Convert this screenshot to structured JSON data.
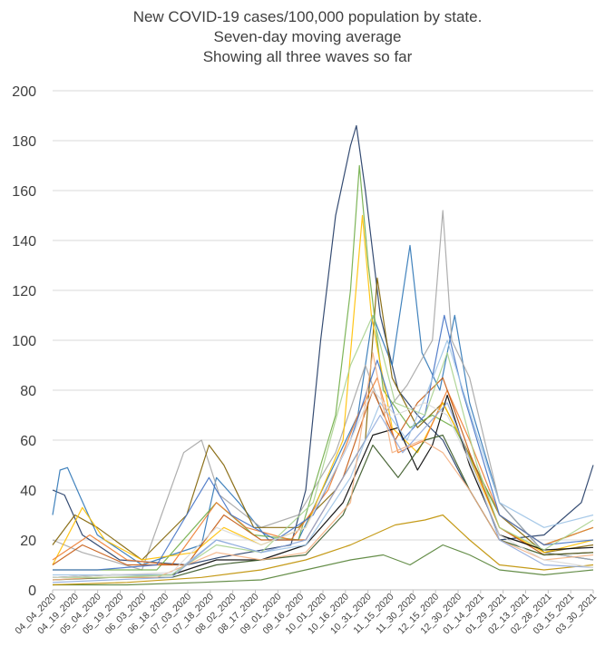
{
  "chart_data": {
    "type": "line",
    "title": [
      "New COVID-19 cases/100,000 population by state.",
      "Seven-day moving average",
      "Showing all three waves so far"
    ],
    "ylim": [
      0,
      200
    ],
    "yticks": [
      "0",
      "20",
      "40",
      "60",
      "80",
      "100",
      "120",
      "140",
      "160",
      "180",
      "200"
    ],
    "x_range_days": [
      0,
      363
    ],
    "xticks": [
      "04_04_2020",
      "04_19_2020",
      "05_04_2020",
      "05_19_2020",
      "06_03_2020",
      "06_18_2020",
      "07_03_2020",
      "07_18_2020",
      "08_02_2020",
      "08_17_2020",
      "09_01_2020",
      "09_16_2020",
      "10_01_2020",
      "10_16_2020",
      "10_31_2020",
      "11_15_2020",
      "11_30_2020",
      "12_15_2020",
      "12_30_2020",
      "01_14_2021",
      "01_29_2021",
      "02_13_2021",
      "02_28_2021",
      "03_15_2021",
      "03_30_2021"
    ],
    "grid": true,
    "legend": "none",
    "series": [
      {
        "color": "#1f3864",
        "points": [
          [
            0,
            40
          ],
          [
            8,
            38
          ],
          [
            20,
            22
          ],
          [
            45,
            12
          ],
          [
            90,
            10
          ],
          [
            112,
            13
          ],
          [
            160,
            18
          ],
          [
            170,
            40
          ],
          [
            180,
            100
          ],
          [
            190,
            150
          ],
          [
            200,
            178
          ],
          [
            204,
            186
          ],
          [
            210,
            160
          ],
          [
            220,
            110
          ],
          [
            232,
            80
          ],
          [
            245,
            70
          ],
          [
            262,
            60
          ],
          [
            275,
            45
          ],
          [
            300,
            20
          ],
          [
            330,
            22
          ],
          [
            355,
            35
          ],
          [
            363,
            50
          ]
        ]
      },
      {
        "color": "#2e75b6",
        "points": [
          [
            0,
            30
          ],
          [
            5,
            48
          ],
          [
            10,
            49
          ],
          [
            18,
            38
          ],
          [
            30,
            22
          ],
          [
            60,
            10
          ],
          [
            100,
            18
          ],
          [
            110,
            45
          ],
          [
            125,
            35
          ],
          [
            145,
            20
          ],
          [
            165,
            20
          ],
          [
            185,
            45
          ],
          [
            205,
            70
          ],
          [
            215,
            110
          ],
          [
            228,
            90
          ],
          [
            240,
            138
          ],
          [
            248,
            95
          ],
          [
            260,
            80
          ],
          [
            270,
            110
          ],
          [
            280,
            75
          ],
          [
            300,
            35
          ],
          [
            330,
            15
          ],
          [
            363,
            12
          ]
        ]
      },
      {
        "color": "#a5a5a5",
        "points": [
          [
            0,
            20
          ],
          [
            20,
            15
          ],
          [
            60,
            8
          ],
          [
            88,
            55
          ],
          [
            100,
            60
          ],
          [
            112,
            38
          ],
          [
            140,
            25
          ],
          [
            165,
            30
          ],
          [
            190,
            55
          ],
          [
            210,
            90
          ],
          [
            222,
            70
          ],
          [
            238,
            82
          ],
          [
            255,
            100
          ],
          [
            262,
            152
          ],
          [
            268,
            100
          ],
          [
            280,
            85
          ],
          [
            300,
            35
          ],
          [
            330,
            15
          ],
          [
            363,
            12
          ]
        ]
      },
      {
        "color": "#7f6000",
        "points": [
          [
            0,
            18
          ],
          [
            15,
            30
          ],
          [
            30,
            25
          ],
          [
            60,
            12
          ],
          [
            90,
            30
          ],
          [
            105,
            58
          ],
          [
            115,
            50
          ],
          [
            135,
            25
          ],
          [
            165,
            25
          ],
          [
            190,
            40
          ],
          [
            210,
            60
          ],
          [
            218,
            125
          ],
          [
            228,
            85
          ],
          [
            245,
            65
          ],
          [
            262,
            75
          ],
          [
            275,
            60
          ],
          [
            300,
            30
          ],
          [
            330,
            15
          ],
          [
            363,
            18
          ]
        ]
      },
      {
        "color": "#70ad47",
        "points": [
          [
            0,
            8
          ],
          [
            30,
            8
          ],
          [
            70,
            8
          ],
          [
            110,
            35
          ],
          [
            135,
            22
          ],
          [
            165,
            20
          ],
          [
            190,
            70
          ],
          [
            200,
            120
          ],
          [
            206,
            170
          ],
          [
            212,
            130
          ],
          [
            222,
            80
          ],
          [
            240,
            65
          ],
          [
            255,
            70
          ],
          [
            270,
            65
          ],
          [
            300,
            30
          ],
          [
            330,
            18
          ],
          [
            363,
            25
          ]
        ]
      },
      {
        "color": "#ffc000",
        "points": [
          [
            0,
            10
          ],
          [
            20,
            33
          ],
          [
            35,
            20
          ],
          [
            60,
            12
          ],
          [
            95,
            15
          ],
          [
            115,
            25
          ],
          [
            140,
            18
          ],
          [
            170,
            25
          ],
          [
            195,
            60
          ],
          [
            208,
            150
          ],
          [
            214,
            110
          ],
          [
            228,
            65
          ],
          [
            245,
            55
          ],
          [
            262,
            75
          ],
          [
            275,
            60
          ],
          [
            300,
            25
          ],
          [
            330,
            15
          ],
          [
            363,
            20
          ]
        ]
      },
      {
        "color": "#ed7d31",
        "points": [
          [
            0,
            12
          ],
          [
            25,
            22
          ],
          [
            50,
            12
          ],
          [
            80,
            10
          ],
          [
            110,
            35
          ],
          [
            130,
            25
          ],
          [
            160,
            20
          ],
          [
            185,
            40
          ],
          [
            205,
            70
          ],
          [
            218,
            85
          ],
          [
            232,
            55
          ],
          [
            250,
            60
          ],
          [
            265,
            80
          ],
          [
            280,
            60
          ],
          [
            300,
            30
          ],
          [
            330,
            18
          ],
          [
            363,
            25
          ]
        ]
      },
      {
        "color": "#c55a11",
        "points": [
          [
            0,
            10
          ],
          [
            20,
            18
          ],
          [
            50,
            10
          ],
          [
            90,
            10
          ],
          [
            115,
            30
          ],
          [
            140,
            20
          ],
          [
            170,
            20
          ],
          [
            195,
            45
          ],
          [
            215,
            80
          ],
          [
            230,
            60
          ],
          [
            245,
            75
          ],
          [
            262,
            85
          ],
          [
            280,
            55
          ],
          [
            300,
            25
          ],
          [
            330,
            14
          ],
          [
            363,
            15
          ]
        ]
      },
      {
        "color": "#4472c4",
        "points": [
          [
            0,
            8
          ],
          [
            30,
            8
          ],
          [
            70,
            10
          ],
          [
            105,
            45
          ],
          [
            120,
            30
          ],
          [
            150,
            20
          ],
          [
            175,
            30
          ],
          [
            200,
            60
          ],
          [
            218,
            92
          ],
          [
            235,
            60
          ],
          [
            250,
            70
          ],
          [
            263,
            110
          ],
          [
            275,
            80
          ],
          [
            300,
            30
          ],
          [
            330,
            18
          ],
          [
            363,
            20
          ]
        ]
      },
      {
        "color": "#000000",
        "points": [
          [
            0,
            5
          ],
          [
            40,
            6
          ],
          [
            80,
            6
          ],
          [
            110,
            12
          ],
          [
            140,
            12
          ],
          [
            170,
            18
          ],
          [
            195,
            35
          ],
          [
            215,
            62
          ],
          [
            232,
            65
          ],
          [
            245,
            48
          ],
          [
            255,
            58
          ],
          [
            265,
            78
          ],
          [
            280,
            50
          ],
          [
            300,
            22
          ],
          [
            330,
            16
          ],
          [
            363,
            17
          ]
        ]
      },
      {
        "color": "#375623",
        "points": [
          [
            0,
            4
          ],
          [
            40,
            5
          ],
          [
            80,
            5
          ],
          [
            110,
            10
          ],
          [
            140,
            12
          ],
          [
            170,
            14
          ],
          [
            195,
            30
          ],
          [
            215,
            58
          ],
          [
            232,
            45
          ],
          [
            250,
            60
          ],
          [
            262,
            62
          ],
          [
            280,
            40
          ],
          [
            300,
            20
          ],
          [
            330,
            14
          ],
          [
            363,
            15
          ]
        ]
      },
      {
        "color": "#9dc3e6",
        "points": [
          [
            0,
            6
          ],
          [
            40,
            6
          ],
          [
            80,
            6
          ],
          [
            110,
            20
          ],
          [
            140,
            15
          ],
          [
            170,
            18
          ],
          [
            200,
            45
          ],
          [
            220,
            75
          ],
          [
            238,
            60
          ],
          [
            252,
            80
          ],
          [
            265,
            100
          ],
          [
            285,
            62
          ],
          [
            300,
            35
          ],
          [
            330,
            25
          ],
          [
            363,
            30
          ]
        ]
      },
      {
        "color": "#f4b183",
        "points": [
          [
            0,
            4
          ],
          [
            30,
            5
          ],
          [
            70,
            5
          ],
          [
            110,
            15
          ],
          [
            140,
            12
          ],
          [
            170,
            15
          ],
          [
            200,
            35
          ],
          [
            215,
            95
          ],
          [
            228,
            55
          ],
          [
            248,
            60
          ],
          [
            262,
            55
          ],
          [
            280,
            40
          ],
          [
            300,
            20
          ],
          [
            330,
            12
          ],
          [
            363,
            14
          ]
        ]
      },
      {
        "color": "#a9d18e",
        "points": [
          [
            0,
            5
          ],
          [
            40,
            5
          ],
          [
            80,
            6
          ],
          [
            110,
            18
          ],
          [
            140,
            15
          ],
          [
            175,
            35
          ],
          [
            200,
            90
          ],
          [
            215,
            110
          ],
          [
            230,
            75
          ],
          [
            250,
            70
          ],
          [
            265,
            95
          ],
          [
            285,
            50
          ],
          [
            300,
            25
          ],
          [
            330,
            16
          ],
          [
            363,
            28
          ]
        ]
      },
      {
        "color": "#548235",
        "points": [
          [
            0,
            2
          ],
          [
            50,
            2
          ],
          [
            100,
            3
          ],
          [
            140,
            4
          ],
          [
            170,
            8
          ],
          [
            200,
            12
          ],
          [
            222,
            14
          ],
          [
            240,
            10
          ],
          [
            262,
            18
          ],
          [
            280,
            14
          ],
          [
            300,
            8
          ],
          [
            330,
            6
          ],
          [
            363,
            8
          ]
        ]
      },
      {
        "color": "#bf9000",
        "points": [
          [
            0,
            2
          ],
          [
            50,
            3
          ],
          [
            100,
            5
          ],
          [
            140,
            8
          ],
          [
            170,
            12
          ],
          [
            200,
            18
          ],
          [
            230,
            26
          ],
          [
            250,
            28
          ],
          [
            262,
            30
          ],
          [
            280,
            20
          ],
          [
            300,
            10
          ],
          [
            330,
            8
          ],
          [
            363,
            10
          ]
        ]
      },
      {
        "color": "#8faadc",
        "points": [
          [
            0,
            3
          ],
          [
            40,
            4
          ],
          [
            80,
            5
          ],
          [
            110,
            20
          ],
          [
            140,
            15
          ],
          [
            170,
            20
          ],
          [
            200,
            50
          ],
          [
            220,
            70
          ],
          [
            235,
            55
          ],
          [
            250,
            65
          ],
          [
            265,
            75
          ],
          [
            285,
            45
          ],
          [
            300,
            20
          ],
          [
            330,
            10
          ],
          [
            363,
            9
          ]
        ]
      },
      {
        "color": "#d9d9d9",
        "points": [
          [
            0,
            5
          ],
          [
            40,
            6
          ],
          [
            80,
            7
          ],
          [
            110,
            25
          ],
          [
            140,
            18
          ],
          [
            170,
            25
          ],
          [
            200,
            60
          ],
          [
            215,
            80
          ],
          [
            230,
            70
          ],
          [
            250,
            75
          ],
          [
            265,
            70
          ],
          [
            285,
            45
          ],
          [
            300,
            22
          ],
          [
            330,
            12
          ],
          [
            363,
            9
          ]
        ]
      }
    ]
  }
}
